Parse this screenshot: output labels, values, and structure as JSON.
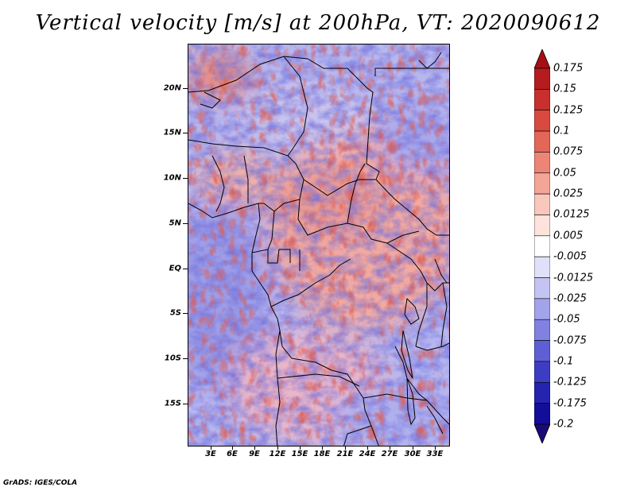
{
  "title": "Vertical velocity [m/s] at 200hPa, VT: 2020090612",
  "credit": "GrADS: IGES/COLA",
  "lat_labels": [
    "20N",
    "15N",
    "10N",
    "5N",
    "EQ",
    "5S",
    "10S",
    "15S"
  ],
  "lon_labels": [
    "3E",
    "6E",
    "9E",
    "12E",
    "15E",
    "18E",
    "21E",
    "24E",
    "27E",
    "30E",
    "33E"
  ],
  "colorbar": {
    "labels": [
      "0.175",
      "0.15",
      "0.125",
      "0.1",
      "0.075",
      "0.05",
      "0.025",
      "0.0125",
      "0.005",
      "-0.005",
      "-0.0125",
      "-0.025",
      "-0.05",
      "-0.075",
      "-0.1",
      "-0.125",
      "-0.175",
      "-0.2"
    ],
    "colors": [
      "#a50f15",
      "#b51c1f",
      "#c7302d",
      "#d8493f",
      "#e36657",
      "#ec8575",
      "#f3a596",
      "#f9c7bc",
      "#fde3dc",
      "#ffffff",
      "#e0e0fa",
      "#c4c4f3",
      "#a3a3ec",
      "#8181e2",
      "#5f5fd5",
      "#3d3dc4",
      "#2424b0",
      "#120e99",
      "#1a0a78"
    ]
  }
}
